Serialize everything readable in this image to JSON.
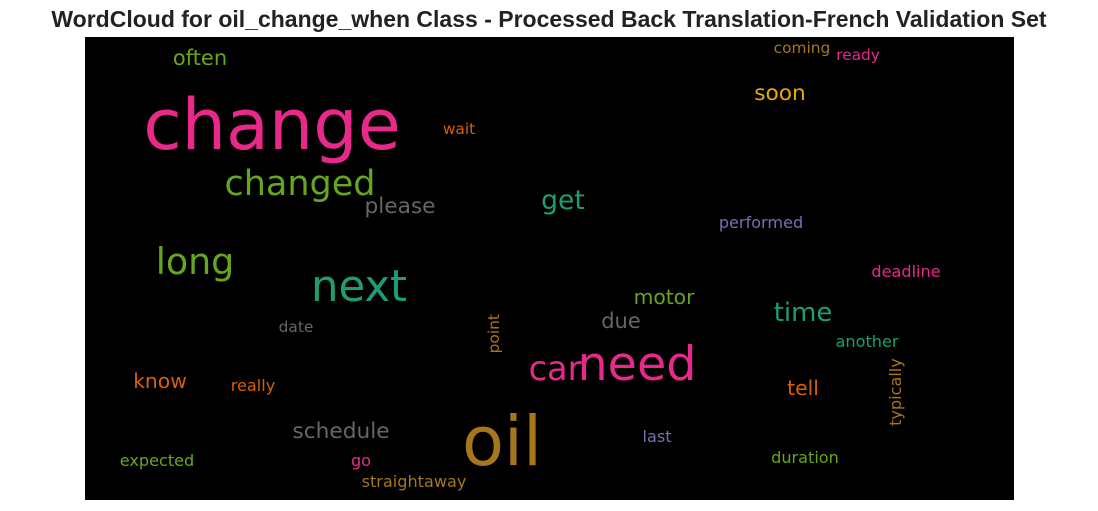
{
  "chart_data": {
    "type": "wordcloud",
    "title": "WordCloud for oil_change_when Class - Processed Back Translation-French Validation Set",
    "background": "#000000",
    "words": [
      {
        "text": "change",
        "weight": 1.0,
        "color": "#e7298a",
        "vertical": false
      },
      {
        "text": "oil",
        "weight": 0.98,
        "color": "#a6761d",
        "vertical": false
      },
      {
        "text": "need",
        "weight": 0.68,
        "color": "#e7298a",
        "vertical": false
      },
      {
        "text": "next",
        "weight": 0.62,
        "color": "#1b9e77",
        "vertical": false
      },
      {
        "text": "long",
        "weight": 0.52,
        "color": "#66a61e",
        "vertical": false
      },
      {
        "text": "changed",
        "weight": 0.5,
        "color": "#66a61e",
        "vertical": false
      },
      {
        "text": "car",
        "weight": 0.48,
        "color": "#e7298a",
        "vertical": false
      },
      {
        "text": "get",
        "weight": 0.38,
        "color": "#1b9e77",
        "vertical": false
      },
      {
        "text": "time",
        "weight": 0.37,
        "color": "#1b9e77",
        "vertical": false
      },
      {
        "text": "please",
        "weight": 0.31,
        "color": "#666666",
        "vertical": false
      },
      {
        "text": "schedule",
        "weight": 0.31,
        "color": "#666666",
        "vertical": false
      },
      {
        "text": "soon",
        "weight": 0.31,
        "color": "#e6ab02",
        "vertical": false
      },
      {
        "text": "often",
        "weight": 0.3,
        "color": "#66a61e",
        "vertical": false
      },
      {
        "text": "due",
        "weight": 0.3,
        "color": "#666666",
        "vertical": false
      },
      {
        "text": "motor",
        "weight": 0.29,
        "color": "#66a61e",
        "vertical": false
      },
      {
        "text": "tell",
        "weight": 0.29,
        "color": "#d95f02",
        "vertical": false
      },
      {
        "text": "know",
        "weight": 0.29,
        "color": "#d95f02",
        "vertical": false
      },
      {
        "text": "performed",
        "weight": 0.23,
        "color": "#7570b3",
        "vertical": false
      },
      {
        "text": "deadline",
        "weight": 0.23,
        "color": "#e7298a",
        "vertical": false
      },
      {
        "text": "typically",
        "weight": 0.23,
        "color": "#a6761d",
        "vertical": true
      },
      {
        "text": "another",
        "weight": 0.23,
        "color": "#1b9e77",
        "vertical": false
      },
      {
        "text": "duration",
        "weight": 0.23,
        "color": "#66a61e",
        "vertical": false
      },
      {
        "text": "last",
        "weight": 0.23,
        "color": "#7570b3",
        "vertical": false
      },
      {
        "text": "straightaway",
        "weight": 0.23,
        "color": "#a6761d",
        "vertical": false
      },
      {
        "text": "go",
        "weight": 0.23,
        "color": "#e7298a",
        "vertical": false
      },
      {
        "text": "expected",
        "weight": 0.23,
        "color": "#66a61e",
        "vertical": false
      },
      {
        "text": "really",
        "weight": 0.23,
        "color": "#d95f02",
        "vertical": false
      },
      {
        "text": "date",
        "weight": 0.22,
        "color": "#666666",
        "vertical": false
      },
      {
        "text": "point",
        "weight": 0.22,
        "color": "#a6761d",
        "vertical": true
      },
      {
        "text": "wait",
        "weight": 0.22,
        "color": "#d95f02",
        "vertical": false
      },
      {
        "text": "coming",
        "weight": 0.22,
        "color": "#a6761d",
        "vertical": false
      },
      {
        "text": "ready",
        "weight": 0.22,
        "color": "#e7298a",
        "vertical": false
      }
    ]
  }
}
